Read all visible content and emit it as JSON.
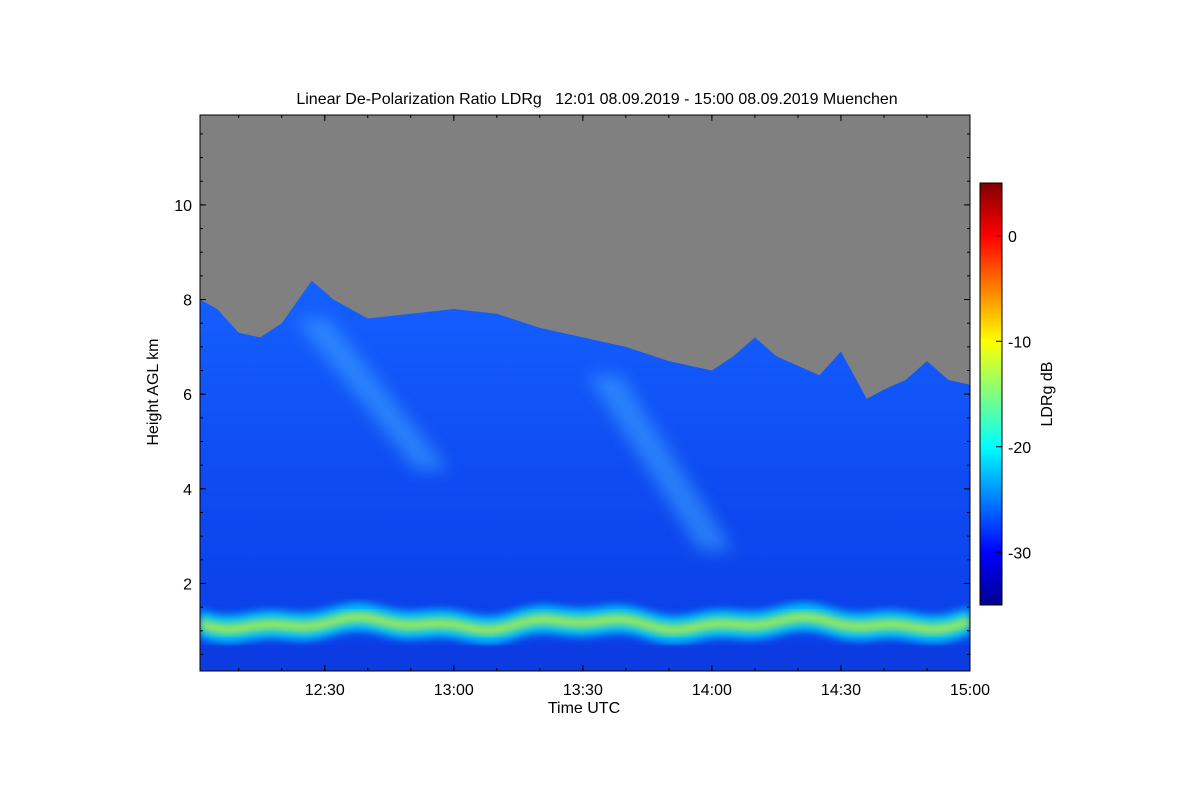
{
  "chart_data": {
    "type": "heatmap",
    "title": "Linear De-Polarization Ratio LDRg   12:01 08.09.2019 - 15:00 08.09.2019 Muenchen",
    "xlabel": "Time UTC",
    "ylabel": "Height AGL km",
    "xlim": [
      "12:01",
      "15:00"
    ],
    "ylim": [
      0.15,
      11.9
    ],
    "x_ticks": [
      "12:30",
      "13:00",
      "13:30",
      "14:00",
      "14:30",
      "15:00"
    ],
    "y_ticks": [
      2,
      4,
      6,
      8,
      10
    ],
    "colorbar": {
      "label": "LDRg dB",
      "range": [
        -35,
        5
      ],
      "ticks": [
        0,
        -10,
        -20,
        -30
      ],
      "colormap": "jet"
    },
    "no_data_color": "#808080",
    "signal_top_km": [
      [
        "12:01",
        8.0
      ],
      [
        "12:05",
        7.8
      ],
      [
        "12:10",
        7.3
      ],
      [
        "12:15",
        7.2
      ],
      [
        "12:20",
        7.5
      ],
      [
        "12:27",
        8.4
      ],
      [
        "12:32",
        8.0
      ],
      [
        "12:40",
        7.6
      ],
      [
        "12:50",
        7.7
      ],
      [
        "13:00",
        7.8
      ],
      [
        "13:10",
        7.7
      ],
      [
        "13:20",
        7.4
      ],
      [
        "13:30",
        7.2
      ],
      [
        "13:40",
        7.0
      ],
      [
        "13:50",
        6.7
      ],
      [
        "14:00",
        6.5
      ],
      [
        "14:05",
        6.8
      ],
      [
        "14:10",
        7.2
      ],
      [
        "14:15",
        6.8
      ],
      [
        "14:20",
        6.6
      ],
      [
        "14:25",
        6.4
      ],
      [
        "14:30",
        6.9
      ],
      [
        "14:33",
        6.4
      ],
      [
        "14:36",
        5.9
      ],
      [
        "14:40",
        6.1
      ],
      [
        "14:45",
        6.3
      ],
      [
        "14:50",
        6.7
      ],
      [
        "14:55",
        6.3
      ],
      [
        "15:00",
        6.2
      ]
    ],
    "boundary_layer_km": {
      "center": 1.15,
      "value_db": -12
    },
    "fall_streaks": [
      {
        "start": [
          "12:27",
          7.6
        ],
        "end": [
          "12:55",
          4.4
        ],
        "value_db": -23
      },
      {
        "start": [
          "13:35",
          6.4
        ],
        "end": [
          "14:01",
          2.7
        ],
        "value_db": -24
      }
    ]
  }
}
